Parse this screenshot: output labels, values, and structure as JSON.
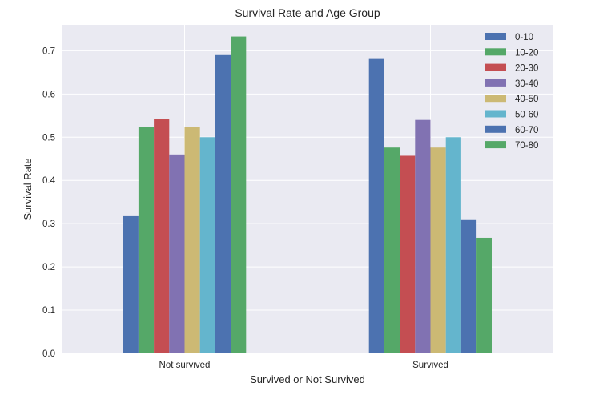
{
  "chart_data": {
    "type": "bar",
    "title": "Survival Rate and Age Group",
    "xlabel": "Survived or Not Survived",
    "ylabel": "Survival Rate",
    "categories": [
      "Not survived",
      "Survived"
    ],
    "ylim": [
      0,
      0.76
    ],
    "yticks": [
      0.0,
      0.1,
      0.2,
      0.3,
      0.4,
      0.5,
      0.6,
      0.7
    ],
    "ytick_labels": [
      "0.0",
      "0.1",
      "0.2",
      "0.3",
      "0.4",
      "0.5",
      "0.6",
      "0.7"
    ],
    "grid": true,
    "legend_position": "top-right",
    "series": [
      {
        "name": "0-10",
        "color": "#4c72b0",
        "values": [
          0.319,
          0.681
        ]
      },
      {
        "name": "10-20",
        "color": "#55a868",
        "values": [
          0.524,
          0.476
        ]
      },
      {
        "name": "20-30",
        "color": "#c44e52",
        "values": [
          0.543,
          0.457
        ]
      },
      {
        "name": "30-40",
        "color": "#8172b2",
        "values": [
          0.46,
          0.54
        ]
      },
      {
        "name": "40-50",
        "color": "#ccb974",
        "values": [
          0.524,
          0.476
        ]
      },
      {
        "name": "50-60",
        "color": "#64b5cd",
        "values": [
          0.5,
          0.5
        ]
      },
      {
        "name": "60-70",
        "color": "#4c72b0",
        "values": [
          0.69,
          0.31
        ]
      },
      {
        "name": "70-80",
        "color": "#55a868",
        "values": [
          0.733,
          0.267
        ]
      }
    ],
    "colors": {
      "plot_background": "#eaeaf2",
      "grid": "#ffffff"
    }
  }
}
